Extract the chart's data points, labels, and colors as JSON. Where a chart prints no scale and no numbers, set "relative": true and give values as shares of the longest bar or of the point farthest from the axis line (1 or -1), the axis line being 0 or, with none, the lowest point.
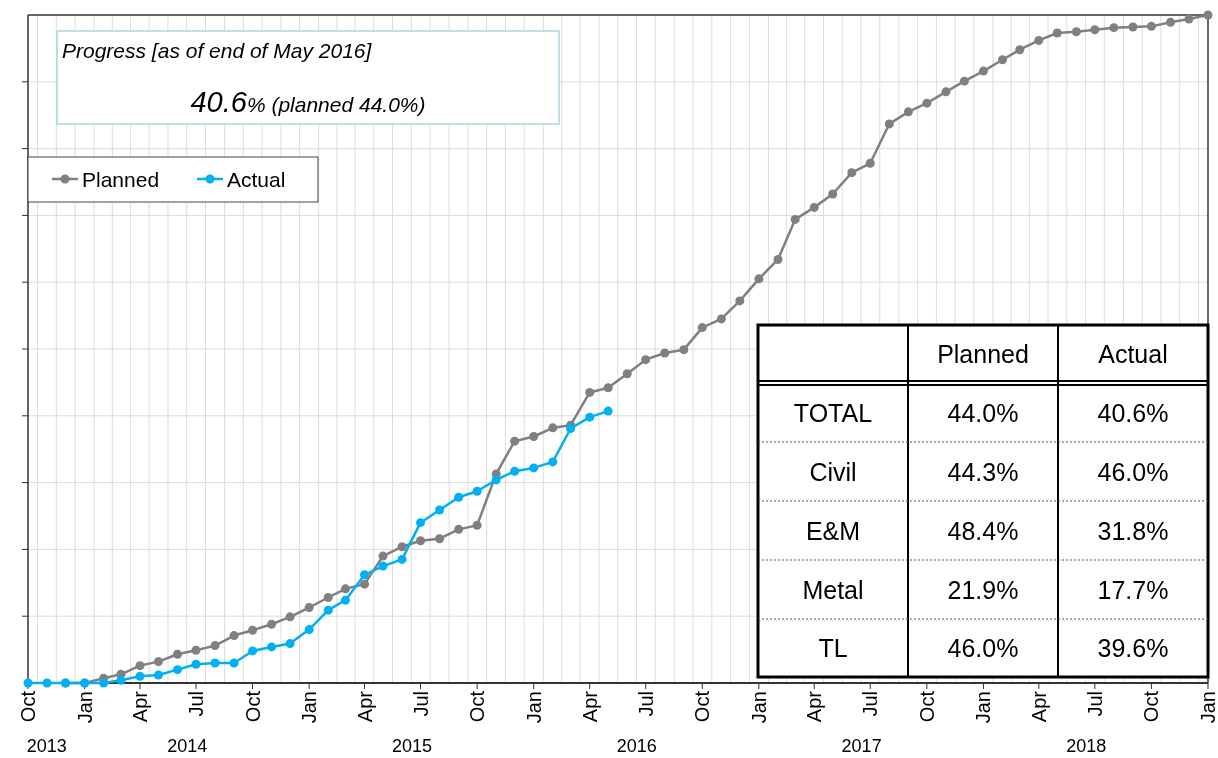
{
  "chart_data": {
    "type": "line",
    "relative": true,
    "marker": "circle",
    "line_style": "solid",
    "grid": true,
    "legend": "top left",
    "x": [
      "2013-12",
      "2014-01",
      "2014-02",
      "2014-03",
      "2014-04",
      "2014-05",
      "2014-06",
      "2014-07",
      "2014-08",
      "2014-09",
      "2014-10",
      "2014-11",
      "2014-12",
      "2015-01",
      "2015-02",
      "2015-03",
      "2015-04",
      "2015-05",
      "2015-06",
      "2015-07",
      "2015-08",
      "2015-09",
      "2015-10",
      "2015-11",
      "2015-12",
      "2016-01",
      "2016-02",
      "2016-03",
      "2016-04",
      "2016-05",
      "2016-06",
      "2016-07",
      "2016-08",
      "2016-09",
      "2016-10",
      "2016-11",
      "2016-12",
      "2017-01",
      "2017-02",
      "2017-03",
      "2017-04",
      "2017-05",
      "2017-06",
      "2017-07",
      "2017-08",
      "2017-09",
      "2017-10",
      "2017-11",
      "2017-12",
      "2018-01",
      "2018-02",
      "2018-03",
      "2018-04",
      "2018-05",
      "2018-06",
      "2018-07",
      "2018-08",
      "2018-09",
      "2018-10",
      "2018-11",
      "2018-12",
      "2019-01"
    ],
    "xlim": [
      "2013-10",
      "2019-01"
    ],
    "xticks": [
      {
        "value": "2013-10",
        "label": "Oct"
      },
      {
        "value": "2014-01",
        "label": "Jan"
      },
      {
        "value": "2014-04",
        "label": "Apr"
      },
      {
        "value": "2014-07",
        "label": "Jul"
      },
      {
        "value": "2014-10",
        "label": "Oct"
      },
      {
        "value": "2015-01",
        "label": "Jan"
      },
      {
        "value": "2015-04",
        "label": "Apr"
      },
      {
        "value": "2015-07",
        "label": "Jul"
      },
      {
        "value": "2015-10",
        "label": "Oct"
      },
      {
        "value": "2016-01",
        "label": "Jan"
      },
      {
        "value": "2016-04",
        "label": "Apr"
      },
      {
        "value": "2016-07",
        "label": "Jul"
      },
      {
        "value": "2016-10",
        "label": "Oct"
      },
      {
        "value": "2017-01",
        "label": "Jan"
      },
      {
        "value": "2017-04",
        "label": "Apr"
      },
      {
        "value": "2017-07",
        "label": "Jul"
      },
      {
        "value": "2017-10",
        "label": "Oct"
      },
      {
        "value": "2018-01",
        "label": "Jan"
      },
      {
        "value": "2018-04",
        "label": "Apr"
      },
      {
        "value": "2018-07",
        "label": "Jul"
      },
      {
        "value": "2018-10",
        "label": "Oct"
      },
      {
        "value": "2019-01",
        "label": "Jan"
      }
    ],
    "series": [
      {
        "name": "Planned",
        "color": "#808080",
        "values": [
          0,
          0,
          0.007,
          0.013,
          0.026,
          0.032,
          0.043,
          0.049,
          0.056,
          0.071,
          0.079,
          0.088,
          0.099,
          0.113,
          0.128,
          0.141,
          0.148,
          0.19,
          0.204,
          0.213,
          0.216,
          0.23,
          0.236,
          0.313,
          0.362,
          0.369,
          0.382,
          0.386,
          0.435,
          0.442,
          0.463,
          0.484,
          0.494,
          0.499,
          0.532,
          0.545,
          0.572,
          0.605,
          0.634,
          0.694,
          0.712,
          0.732,
          0.764,
          0.778,
          0.837,
          0.855,
          0.868,
          0.885,
          0.901,
          0.916,
          0.933,
          0.948,
          0.962,
          0.973,
          0.975,
          0.978,
          0.981,
          0.982,
          0.983,
          0.989,
          0.994,
          1
        ]
      },
      {
        "name": "Actual",
        "color": "#00b0f0",
        "x": [
          "2013-10",
          "2013-11",
          "2013-12",
          "2014-01",
          "2014-02",
          "2014-03",
          "2014-04",
          "2014-05",
          "2014-06",
          "2014-07",
          "2014-08",
          "2014-09",
          "2014-10",
          "2014-11",
          "2014-12",
          "2015-01",
          "2015-02",
          "2015-03",
          "2015-04",
          "2015-05",
          "2015-06",
          "2015-07",
          "2015-08",
          "2015-09",
          "2015-10",
          "2015-11",
          "2015-12",
          "2016-01",
          "2016-02",
          "2016-03",
          "2016-04",
          "2016-05"
        ],
        "values": [
          0,
          0,
          0,
          0,
          0,
          0.004,
          0.01,
          0.012,
          0.02,
          0.028,
          0.03,
          0.03,
          0.048,
          0.054,
          0.059,
          0.08,
          0.109,
          0.124,
          0.162,
          0.175,
          0.185,
          0.24,
          0.259,
          0.278,
          0.287,
          0.304,
          0.317,
          0.322,
          0.331,
          0.381,
          0.398,
          0.407
        ]
      }
    ],
    "annotations": [
      "Progress [as of end of May 2016]",
      "40.6% (planned 44.0%)",
      "Planned",
      "Actual",
      "TOTAL",
      "44.0%",
      "40.6%",
      "Civil",
      "44.3%",
      "46.0%",
      "E&M",
      "48.4%",
      "31.8%",
      "Metal",
      "21.9%",
      "17.7%",
      "TL",
      "46.0%",
      "39.6%",
      "2013",
      "2014",
      "2015",
      "2016",
      "2017",
      "2018"
    ]
  }
}
